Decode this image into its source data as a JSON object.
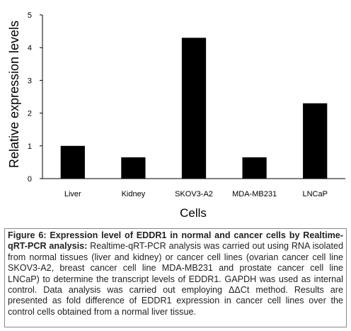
{
  "chart_data": {
    "type": "bar",
    "categories": [
      "Liver",
      "Kidney",
      "SKOV3-A2",
      "MDA-MB231",
      "LNCaP"
    ],
    "values": [
      1.0,
      0.65,
      4.3,
      0.65,
      2.3
    ],
    "xlabel": "Cells",
    "ylabel": "Relative expression levels",
    "ylim": [
      0,
      5
    ],
    "yticks": [
      0,
      1,
      2,
      3,
      4,
      5
    ],
    "grid": false,
    "bar_color": "#000000"
  },
  "caption": {
    "heading": "Figure 6: Expression level of EDDR1 in normal and cancer cells by Realtime-qRT-PCR analysis:",
    "body": " Realtime-qRT-PCR analysis was carried out using RNA isolated from normal tissues (liver and kidney) or cancer cell lines (ovarian cancer cell line SKOV3-A2, breast cancer cell line MDA-MB231 and prostate cancer cell line LNCaP) to determine the transcript levels of EDDR1. GAPDH was used as internal control. Data analysis was carried out employing ΔΔCt method. Results are presented as fold difference of EDDR1 expression in cancer cell lines over the control cells obtained from a normal liver tissue."
  }
}
